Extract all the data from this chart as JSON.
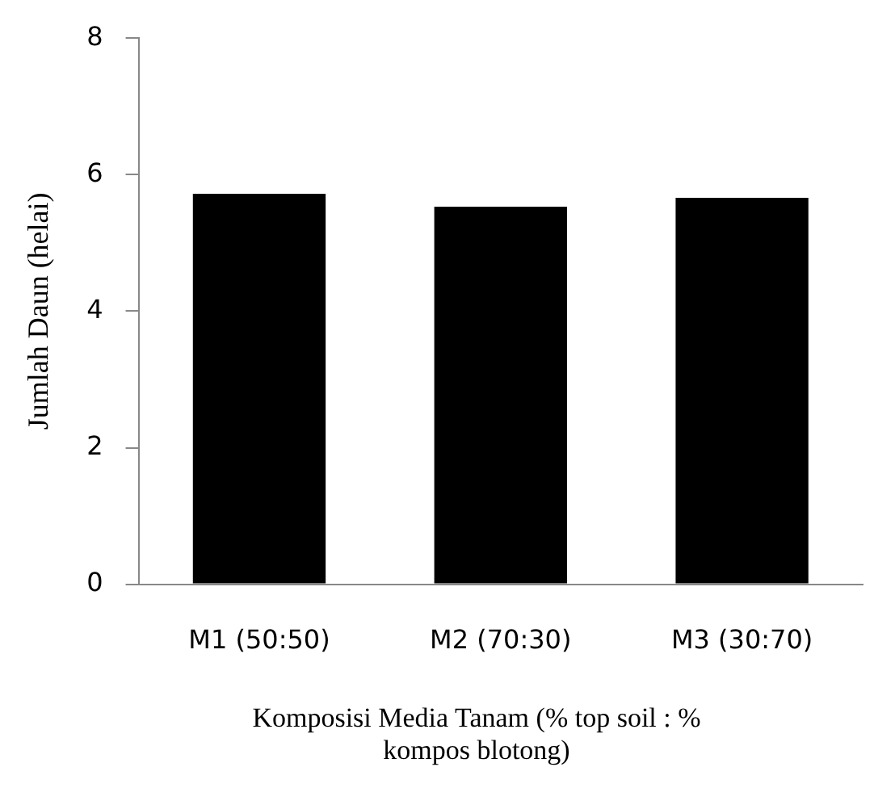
{
  "chart_data": {
    "type": "bar",
    "categories": [
      "M1 (50:50)",
      "M2 (70:30)",
      "M3 (30:70)"
    ],
    "values": [
      5.72,
      5.53,
      5.66
    ],
    "color": "#000000",
    "ylim": [
      0,
      8
    ],
    "yticks": [
      0,
      2,
      4,
      6,
      8
    ],
    "ylabel": "Jumlah Daun (helai)",
    "xlabel": "Komposisi Media Tanam (% top soil : % kompos blotong)",
    "grid": false,
    "legend": false
  }
}
